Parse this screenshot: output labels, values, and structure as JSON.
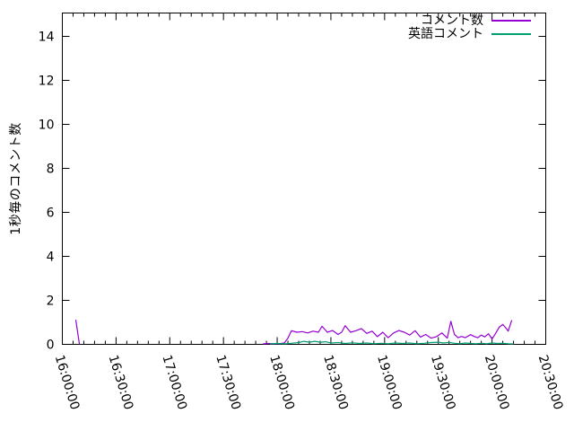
{
  "figure": {
    "background": "#ffffff",
    "axis_color": "#000000",
    "legend_position": "top-right-inside"
  },
  "chart_data": {
    "type": "line",
    "title": "",
    "xlabel": "",
    "ylabel": "1秒毎のコメント数",
    "x_unit": "minutes_after_16:00",
    "xlim_minutes": [
      0,
      270
    ],
    "ylim": [
      0,
      15
    ],
    "grid": false,
    "x_tick_labels": [
      "16:00:00",
      "16:30:00",
      "17:00:00",
      "17:30:00",
      "18:00:00",
      "18:30:00",
      "19:00:00",
      "19:30:00",
      "20:00:00",
      "20:30:00"
    ],
    "x_tick_minutes": [
      0,
      30,
      60,
      90,
      120,
      150,
      180,
      210,
      240,
      270
    ],
    "x_minor_tick_interval_minutes": 6,
    "y_ticks": [
      0,
      2,
      4,
      6,
      8,
      10,
      12,
      14
    ],
    "series": [
      {
        "name": "コメント数",
        "color": "#9400d3",
        "segments": [
          [
            [
              7.5,
              1.12
            ],
            [
              9.5,
              0.02
            ]
          ],
          [
            [
              112,
              0.02
            ],
            [
              115,
              0.04
            ],
            [
              118,
              0.02
            ],
            [
              121,
              0.03
            ],
            [
              124,
              0.06
            ],
            [
              126,
              0.28
            ],
            [
              128,
              0.62
            ],
            [
              131,
              0.55
            ],
            [
              134,
              0.58
            ],
            [
              137,
              0.52
            ],
            [
              140,
              0.6
            ],
            [
              143,
              0.55
            ],
            [
              145,
              0.82
            ],
            [
              148,
              0.55
            ],
            [
              151,
              0.63
            ],
            [
              154,
              0.45
            ],
            [
              156,
              0.55
            ],
            [
              158,
              0.85
            ],
            [
              161,
              0.55
            ],
            [
              164,
              0.62
            ],
            [
              167,
              0.72
            ],
            [
              170,
              0.5
            ],
            [
              173,
              0.6
            ],
            [
              176,
              0.35
            ],
            [
              179,
              0.55
            ],
            [
              182,
              0.3
            ],
            [
              185,
              0.52
            ],
            [
              188,
              0.63
            ],
            [
              191,
              0.55
            ],
            [
              194,
              0.42
            ],
            [
              197,
              0.62
            ],
            [
              200,
              0.33
            ],
            [
              203,
              0.45
            ],
            [
              206,
              0.28
            ],
            [
              209,
              0.35
            ],
            [
              212,
              0.52
            ],
            [
              215,
              0.28
            ],
            [
              217,
              1.05
            ],
            [
              219,
              0.45
            ],
            [
              221,
              0.3
            ],
            [
              223,
              0.36
            ],
            [
              225,
              0.3
            ],
            [
              228,
              0.44
            ],
            [
              230,
              0.36
            ],
            [
              232,
              0.3
            ],
            [
              234,
              0.42
            ],
            [
              236,
              0.34
            ],
            [
              238,
              0.48
            ],
            [
              240,
              0.25
            ],
            [
              242,
              0.5
            ],
            [
              244,
              0.78
            ],
            [
              246,
              0.9
            ],
            [
              248,
              0.72
            ],
            [
              249,
              0.6
            ],
            [
              251,
              1.1
            ]
          ]
        ]
      },
      {
        "name": "英語コメント",
        "color": "#009e73",
        "segments": [
          [
            [
              116,
              0.02
            ],
            [
              120,
              0.04
            ],
            [
              124,
              0.02
            ],
            [
              128,
              0.05
            ],
            [
              132,
              0.08
            ],
            [
              135,
              0.14
            ],
            [
              138,
              0.1
            ],
            [
              141,
              0.14
            ],
            [
              144,
              0.1
            ],
            [
              147,
              0.12
            ],
            [
              150,
              0.06
            ],
            [
              154,
              0.08
            ],
            [
              158,
              0.04
            ],
            [
              162,
              0.07
            ],
            [
              166,
              0.04
            ],
            [
              170,
              0.06
            ],
            [
              174,
              0.03
            ],
            [
              178,
              0.05
            ],
            [
              182,
              0.03
            ],
            [
              186,
              0.06
            ],
            [
              190,
              0.04
            ],
            [
              194,
              0.06
            ],
            [
              198,
              0.03
            ],
            [
              202,
              0.05
            ],
            [
              206,
              0.08
            ],
            [
              210,
              0.1
            ],
            [
              213,
              0.06
            ],
            [
              216,
              0.09
            ],
            [
              219,
              0.05
            ],
            [
              222,
              0.03
            ],
            [
              225,
              0.06
            ],
            [
              228,
              0.04
            ],
            [
              231,
              0.03
            ],
            [
              234,
              0.05
            ],
            [
              237,
              0.03
            ],
            [
              240,
              0.06
            ],
            [
              243,
              0.04
            ],
            [
              246,
              0.05
            ],
            [
              249,
              0.03
            ],
            [
              252,
              0.02
            ]
          ]
        ]
      }
    ]
  }
}
